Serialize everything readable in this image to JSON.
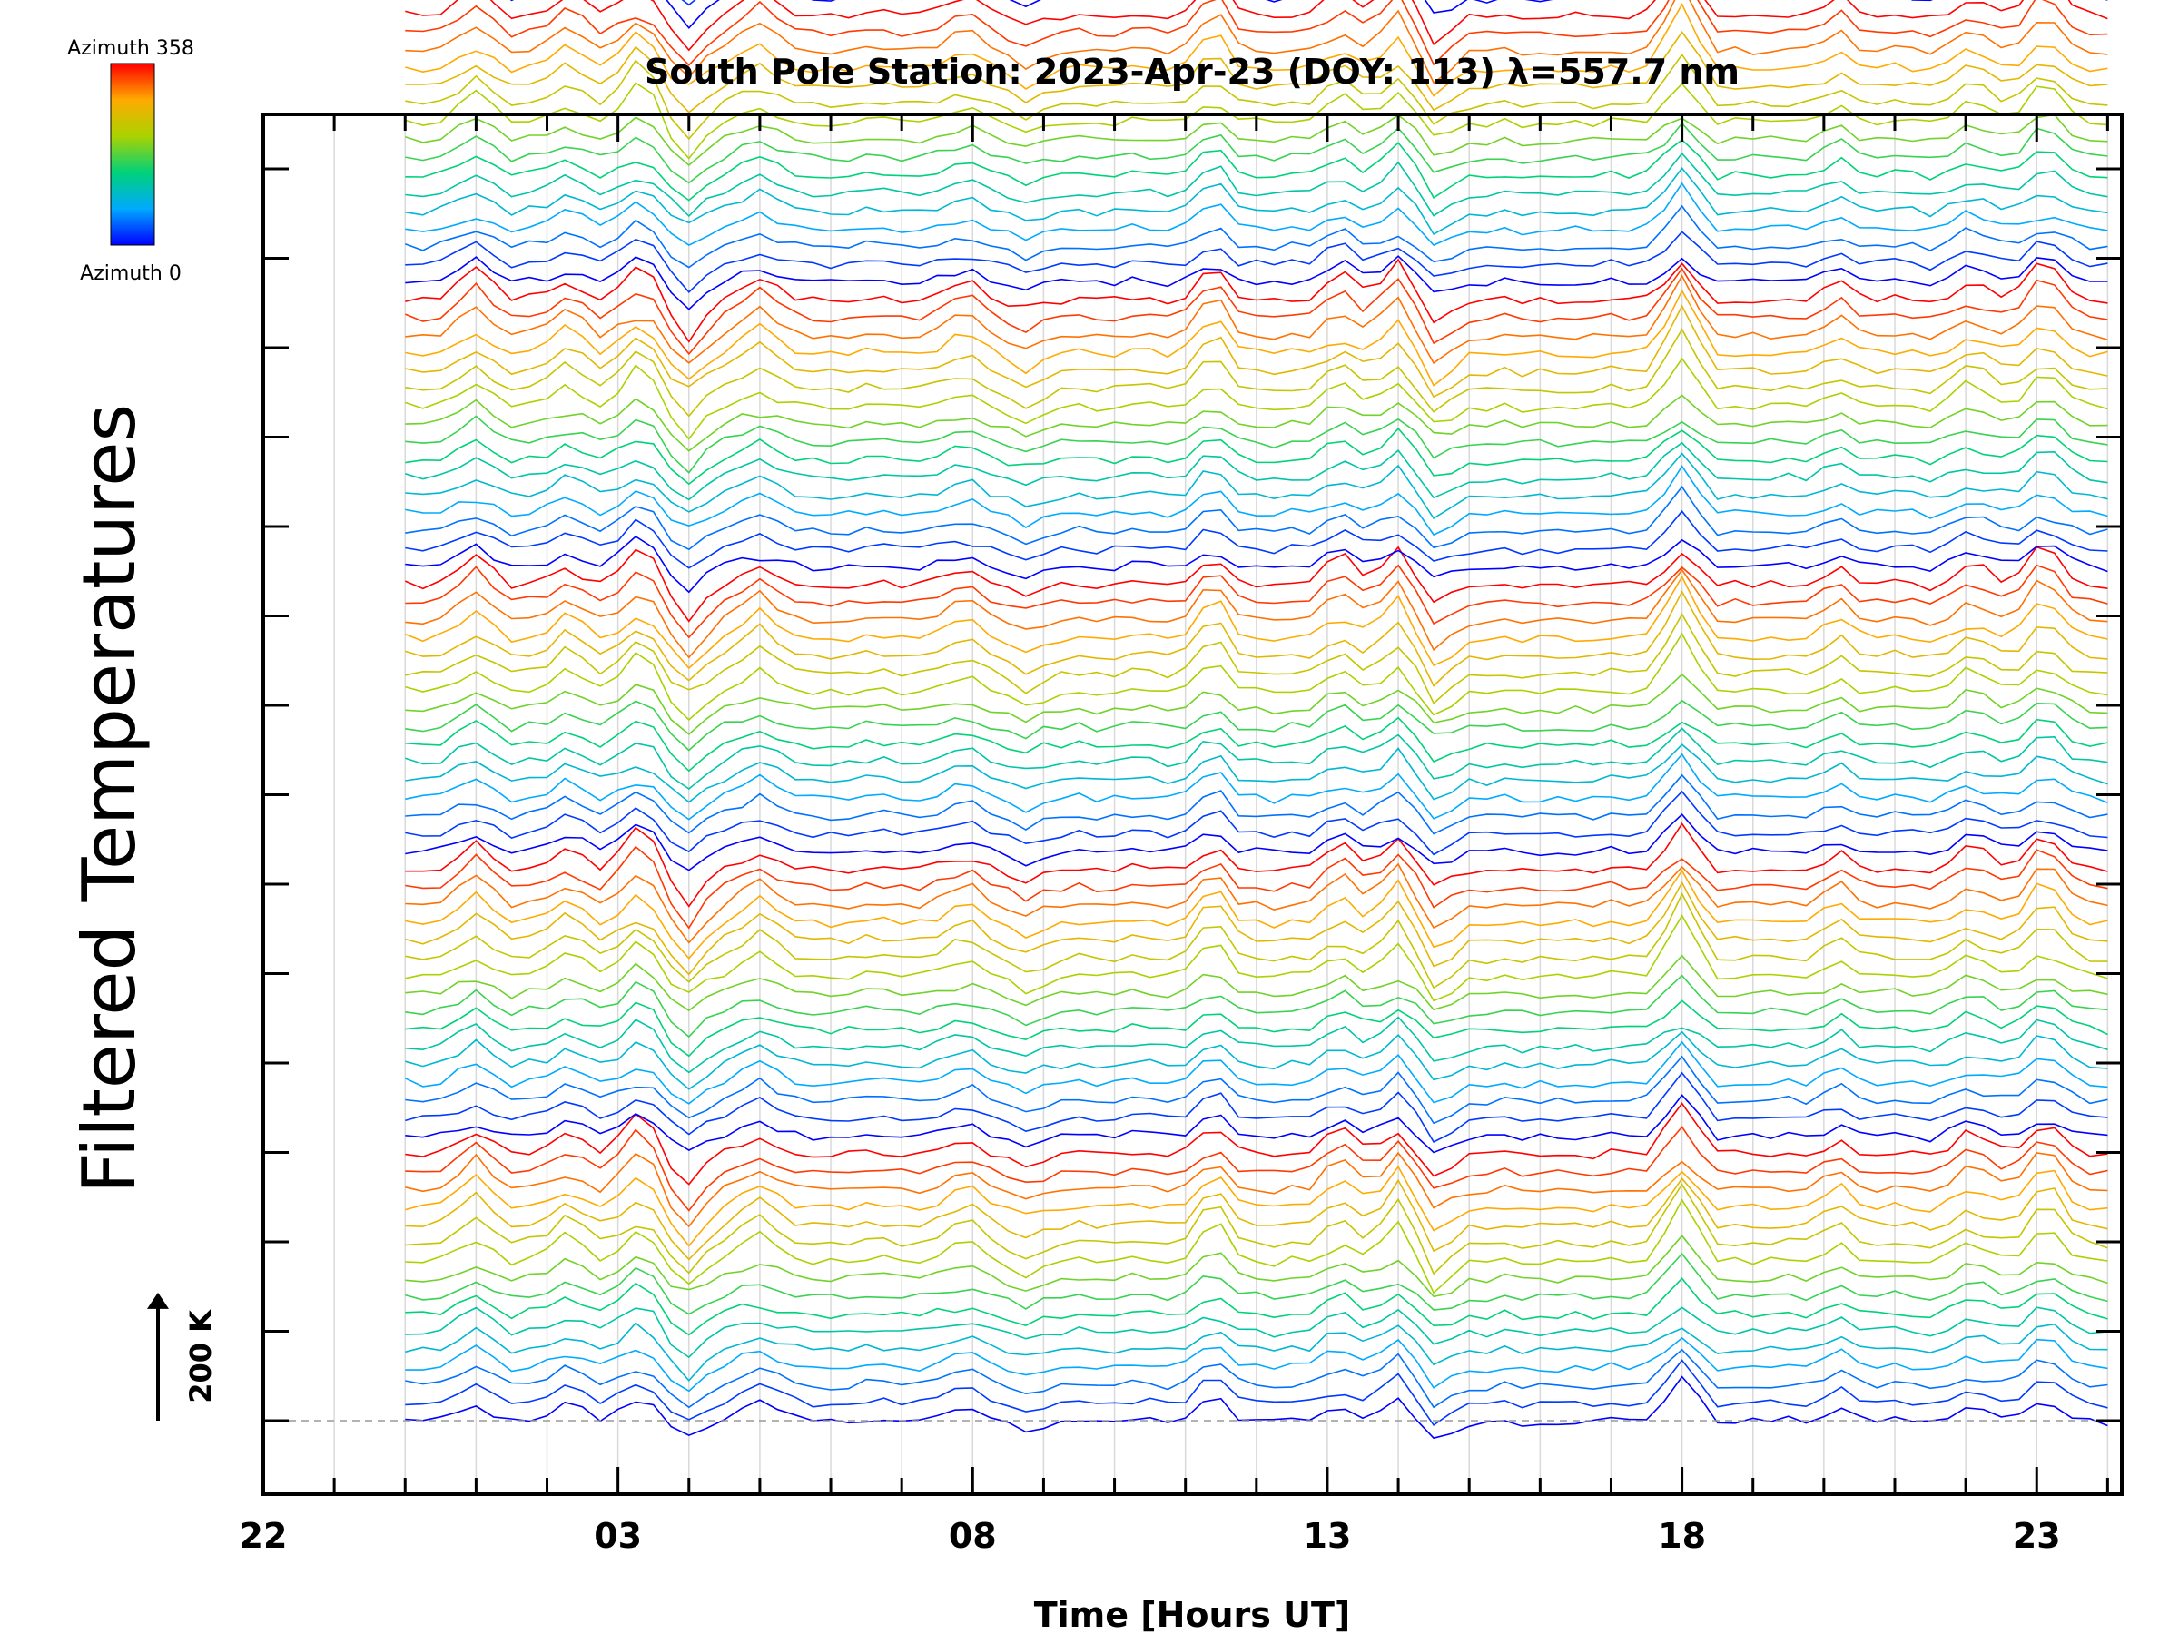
{
  "chart_data": {
    "type": "line",
    "title": "South Pole Station: 2023-Apr-23 (DOY: 113) λ=557.7 nm",
    "xlabel": "Time [Hours UT]",
    "ylabel": "Filtered Temperatures",
    "x_tick_labels": [
      "22",
      "03",
      "08",
      "13",
      "18",
      "23"
    ],
    "x_tick_hours": [
      22,
      27,
      32,
      37,
      42,
      47
    ],
    "xlim": [
      22,
      48.2
    ],
    "data_start_hour": 24,
    "data_end_hour": 48,
    "sample_interval_hours": 0.25,
    "trace_offset_k": 40,
    "scale_bar_label": "200 K",
    "scale_bar_k": 200,
    "colorbar": {
      "top_label": "Azimuth  358",
      "bottom_label": "Azimuth  0",
      "azimuth_min": 0,
      "azimuth_max": 358,
      "colors": [
        "#0000ff",
        "#00aaff",
        "#00d27a",
        "#aad200",
        "#ffaa00",
        "#ff0000"
      ]
    },
    "traces": {
      "count": 96,
      "groups": 6,
      "per_group": 16,
      "note": "Stacked per-azimuth filtered temperature perturbation traces, offset vertically; shared spike events in K",
      "events": [
        {
          "hour": 25.0,
          "amplitude_k": 25
        },
        {
          "hour": 26.3,
          "amplitude_k": 20
        },
        {
          "hour": 27.3,
          "amplitude_k": 35
        },
        {
          "hour": 28.0,
          "amplitude_k": -30
        },
        {
          "hour": 29.0,
          "amplitude_k": 25
        },
        {
          "hour": 31.9,
          "amplitude_k": 20
        },
        {
          "hour": 32.8,
          "amplitude_k": -15
        },
        {
          "hour": 35.4,
          "amplitude_k": 30
        },
        {
          "hour": 37.2,
          "amplitude_k": 25
        },
        {
          "hour": 38.0,
          "amplitude_k": 35
        },
        {
          "hour": 38.5,
          "amplitude_k": -25
        },
        {
          "hour": 42.0,
          "amplitude_k": 50
        },
        {
          "hour": 44.2,
          "amplitude_k": 15
        },
        {
          "hour": 46.1,
          "amplitude_k": 20
        },
        {
          "hour": 47.1,
          "amplitude_k": 35
        }
      ]
    }
  }
}
